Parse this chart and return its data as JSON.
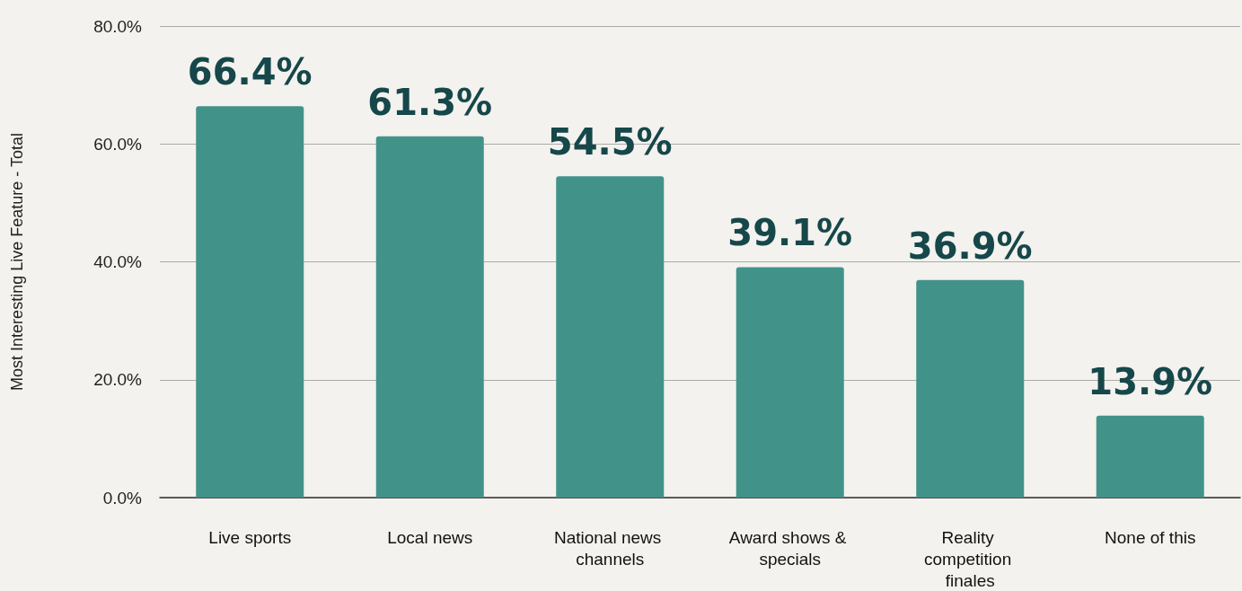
{
  "chart_data": {
    "type": "bar",
    "ylabel": "Most Interesting Live Feature - Total",
    "categories": [
      "Live sports",
      "Local news",
      "National news channels",
      "Award shows & specials",
      "Reality competition finales",
      "None of this"
    ],
    "values": [
      66.4,
      61.3,
      54.5,
      39.1,
      36.9,
      13.9
    ],
    "value_labels": [
      "66.4%",
      "61.3%",
      "54.5%",
      "39.1%",
      "36.9%",
      "13.9%"
    ],
    "color": "#41938a",
    "ylim": [
      0,
      80
    ],
    "yticks": [
      {
        "value": 0,
        "label": "0.0%"
      },
      {
        "value": 20,
        "label": "20.0%"
      },
      {
        "value": 40,
        "label": "40.0%"
      },
      {
        "value": 60,
        "label": "60.0%"
      },
      {
        "value": 80,
        "label": "80.0%"
      }
    ],
    "grid": "y"
  }
}
